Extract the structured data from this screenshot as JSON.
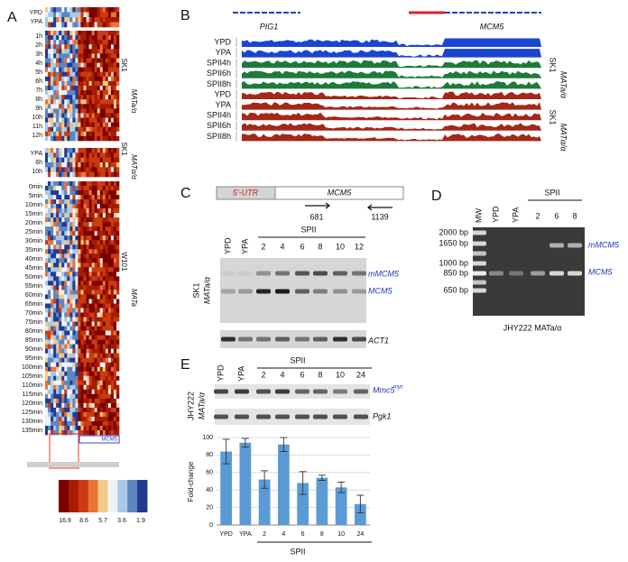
{
  "panel_a": {
    "label": "A",
    "top_rows": [
      "YPD",
      "YPA"
    ],
    "group1": {
      "rows": [
        "1h",
        "2h",
        "3h",
        "4h",
        "5h",
        "6h",
        "7h",
        "8h",
        "9h",
        "10h",
        "11h",
        "12h"
      ],
      "side": [
        "SK1",
        "MATa/α"
      ]
    },
    "group2": {
      "rows": [
        "YPA",
        "6h",
        "10h"
      ],
      "side": [
        "SK1",
        "MATα/α"
      ]
    },
    "group3": {
      "rows": [
        "0min",
        "5min",
        "10min",
        "15min",
        "20min",
        "25min",
        "30min",
        "35min",
        "40min",
        "45min",
        "50min",
        "55min",
        "60min",
        "65min",
        "70min",
        "75min",
        "80min",
        "85min",
        "90min",
        "95min",
        "100min",
        "105min",
        "110min",
        "115min",
        "120min",
        "125min",
        "130min",
        "135min"
      ],
      "side": [
        "W101",
        "MATa"
      ]
    },
    "gene": "MCM5",
    "colorbar_ticks": [
      16.9,
      8.6,
      5.7,
      3.6,
      1.9
    ]
  },
  "panel_b": {
    "label": "B",
    "genes": [
      "PIG1",
      "MCM5"
    ],
    "tracks": [
      "YPD",
      "YPA",
      "SPII4h",
      "SPII6h",
      "SPII8h",
      "YPD",
      "YPA",
      "SPII4h",
      "SPII6h",
      "SPII8h"
    ],
    "side": [
      [
        "SK1",
        "MATa/α"
      ],
      [
        "SK1",
        "MATα/α"
      ]
    ]
  },
  "panel_c": {
    "label": "C",
    "utr": "5'-UTR",
    "gene": "MCM5",
    "primers": [
      681,
      1139
    ],
    "header": "SPII",
    "lanes": [
      "YPD",
      "YPA",
      "2",
      "4",
      "6",
      "8",
      "10",
      "12"
    ],
    "strain": [
      "SK1",
      "MATa/α"
    ],
    "bands": [
      "mMCM5",
      "MCM5",
      "ACT1"
    ]
  },
  "panel_d": {
    "label": "D",
    "header": "SPII",
    "lanes": [
      "MW",
      "YPD",
      "YPA",
      "2",
      "6",
      "8"
    ],
    "ladder": [
      "2000 bp",
      "1650 bp",
      "1000 bp",
      "850 bp",
      "650 bp"
    ],
    "bands": [
      "mMCM5",
      "MCM5"
    ],
    "strain": "JHY222 MATa/α"
  },
  "panel_e": {
    "label": "E",
    "header": "SPII",
    "lanes": [
      "YPD",
      "YPA",
      "2",
      "4",
      "6",
      "8",
      "10",
      "24"
    ],
    "strain": [
      "JHY222",
      "MATa/α"
    ],
    "bands": [
      "Mmc5",
      "Pgk1"
    ],
    "band_sup": "myc"
  },
  "chart_data": {
    "type": "bar",
    "ylabel": "Fold-change",
    "xlabel": "SPII",
    "categories": [
      "YPD",
      "YPA",
      "2",
      "4",
      "6",
      "8",
      "10",
      "24"
    ],
    "values": [
      84,
      94,
      52,
      92,
      48,
      54,
      43,
      24
    ],
    "errors": [
      14,
      5,
      10,
      8,
      13,
      3,
      6,
      10
    ],
    "ylim": [
      0,
      100
    ],
    "yticks": [
      0,
      20,
      40,
      60,
      80,
      100
    ],
    "color": "#5b9bd5",
    "grid": true
  }
}
